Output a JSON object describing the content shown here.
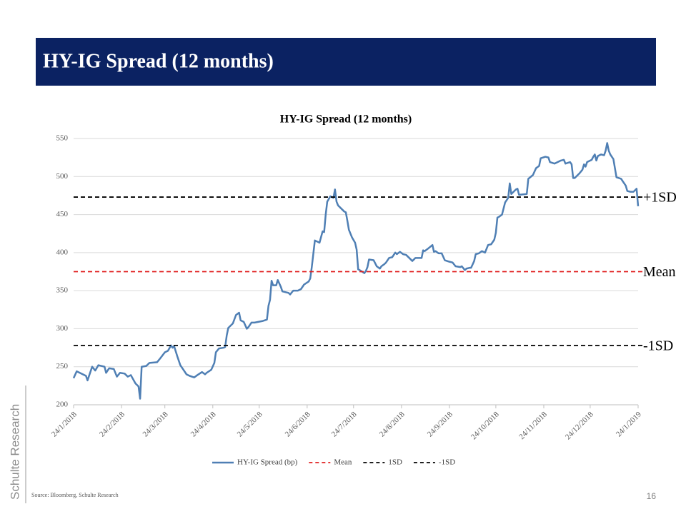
{
  "header": {
    "title": "HY-IG Spread (12 months)"
  },
  "watermark": "Schulte Research",
  "footer": {
    "source": "Source: Bloomberg, Schulte Research",
    "page": 16
  },
  "chart_data": {
    "type": "line",
    "title": "HY-IG Spread (12 months)",
    "xlim": [
      "2018-01-24",
      "2019-01-24"
    ],
    "xticks": [
      {
        "value": "2018-01-24",
        "label": "24/1/2018"
      },
      {
        "value": "2018-02-24",
        "label": "24/2/2018"
      },
      {
        "value": "2018-03-24",
        "label": "24/3/2018"
      },
      {
        "value": "2018-04-24",
        "label": "24/4/2018"
      },
      {
        "value": "2018-05-24",
        "label": "24/5/2018"
      },
      {
        "value": "2018-06-24",
        "label": "24/6/2018"
      },
      {
        "value": "2018-07-24",
        "label": "24/7/2018"
      },
      {
        "value": "2018-08-24",
        "label": "24/8/2018"
      },
      {
        "value": "2018-09-24",
        "label": "24/9/2018"
      },
      {
        "value": "2018-10-24",
        "label": "24/10/2018"
      },
      {
        "value": "2018-11-24",
        "label": "24/11/2018"
      },
      {
        "value": "2018-12-24",
        "label": "24/12/2018"
      },
      {
        "value": "2019-01-24",
        "label": "24/1/2019"
      }
    ],
    "ylim": [
      200,
      550
    ],
    "yticks": [
      200,
      250,
      300,
      350,
      400,
      450,
      500,
      550
    ],
    "grid": true,
    "x": [
      "2018-01-24",
      "2018-01-26",
      "2018-01-30",
      "2018-02-01",
      "2018-02-02",
      "2018-02-05",
      "2018-02-07",
      "2018-02-09",
      "2018-02-13",
      "2018-02-14",
      "2018-02-16",
      "2018-02-19",
      "2018-02-21",
      "2018-02-23",
      "2018-02-26",
      "2018-02-28",
      "2018-03-02",
      "2018-03-05",
      "2018-03-07",
      "2018-03-08",
      "2018-03-09",
      "2018-03-12",
      "2018-03-14",
      "2018-03-19",
      "2018-03-21",
      "2018-03-24",
      "2018-03-26",
      "2018-03-28",
      "2018-03-29",
      "2018-03-30",
      "2018-04-01",
      "2018-04-03",
      "2018-04-05",
      "2018-04-07",
      "2018-04-09",
      "2018-04-12",
      "2018-04-14",
      "2018-04-17",
      "2018-04-19",
      "2018-04-20",
      "2018-04-23",
      "2018-04-25",
      "2018-04-26",
      "2018-04-28",
      "2018-05-01",
      "2018-05-02",
      "2018-05-03",
      "2018-05-04",
      "2018-05-07",
      "2018-05-09",
      "2018-05-11",
      "2018-05-12",
      "2018-05-14",
      "2018-05-16",
      "2018-05-17",
      "2018-05-19",
      "2018-05-21",
      "2018-05-26",
      "2018-05-29",
      "2018-05-30",
      "2018-05-31",
      "2018-06-01",
      "2018-06-02",
      "2018-06-04",
      "2018-06-05",
      "2018-06-07",
      "2018-06-08",
      "2018-06-12",
      "2018-06-13",
      "2018-06-15",
      "2018-06-18",
      "2018-06-20",
      "2018-06-22",
      "2018-06-25",
      "2018-06-26",
      "2018-06-27",
      "2018-06-29",
      "2018-07-01",
      "2018-07-02",
      "2018-07-04",
      "2018-07-05",
      "2018-07-06",
      "2018-07-07",
      "2018-07-09",
      "2018-07-11",
      "2018-07-12",
      "2018-07-13",
      "2018-07-14",
      "2018-07-16",
      "2018-07-18",
      "2018-07-19",
      "2018-07-20",
      "2018-07-21",
      "2018-07-23",
      "2018-07-25",
      "2018-07-26",
      "2018-07-27",
      "2018-07-28",
      "2018-07-31",
      "2018-08-01",
      "2018-08-02",
      "2018-08-03",
      "2018-08-06",
      "2018-08-08",
      "2018-08-10",
      "2018-08-11",
      "2018-08-13",
      "2018-08-14",
      "2018-08-16",
      "2018-08-18",
      "2018-08-20",
      "2018-08-21",
      "2018-08-23",
      "2018-08-25",
      "2018-08-27",
      "2018-08-30",
      "2018-08-31",
      "2018-09-02",
      "2018-09-06",
      "2018-09-07",
      "2018-09-08",
      "2018-09-10",
      "2018-09-13",
      "2018-09-14",
      "2018-09-15",
      "2018-09-17",
      "2018-09-19",
      "2018-09-21",
      "2018-09-24",
      "2018-09-26",
      "2018-09-28",
      "2018-10-01",
      "2018-10-02",
      "2018-10-04",
      "2018-10-05",
      "2018-10-07",
      "2018-10-08",
      "2018-10-10",
      "2018-10-11",
      "2018-10-13",
      "2018-10-15",
      "2018-10-17",
      "2018-10-19",
      "2018-10-21",
      "2018-10-23",
      "2018-10-24",
      "2018-10-25",
      "2018-10-26",
      "2018-10-28",
      "2018-10-30",
      "2018-11-01",
      "2018-11-02",
      "2018-11-03",
      "2018-11-04",
      "2018-11-06",
      "2018-11-07",
      "2018-11-08",
      "2018-11-13",
      "2018-11-14",
      "2018-11-17",
      "2018-11-19",
      "2018-11-21",
      "2018-11-22",
      "2018-11-25",
      "2018-11-27",
      "2018-11-28",
      "2018-12-01",
      "2018-12-05",
      "2018-12-07",
      "2018-12-08",
      "2018-12-11",
      "2018-12-12",
      "2018-12-13",
      "2018-12-14",
      "2018-12-17",
      "2018-12-19",
      "2018-12-20",
      "2018-12-21",
      "2018-12-22",
      "2018-12-25",
      "2018-12-26",
      "2018-12-27",
      "2018-12-28",
      "2018-12-29",
      "2018-12-31",
      "2019-01-02",
      "2019-01-03",
      "2019-01-04",
      "2019-01-05",
      "2019-01-06",
      "2019-01-08",
      "2019-01-09",
      "2019-01-10",
      "2019-01-13",
      "2019-01-14",
      "2019-01-16",
      "2019-01-17",
      "2019-01-19",
      "2019-01-21",
      "2019-01-23",
      "2019-01-24"
    ],
    "series": [
      {
        "name": "HY-IG Spread (bp)",
        "color": "#4f7fb4",
        "values": [
          235,
          244,
          240,
          238,
          232,
          250,
          245,
          252,
          250,
          242,
          248,
          247,
          237,
          242,
          241,
          237,
          239,
          228,
          224,
          208,
          250,
          251,
          255,
          256,
          261,
          269,
          271,
          278,
          275,
          277,
          264,
          252,
          246,
          240,
          238,
          236,
          239,
          243,
          240,
          242,
          246,
          255,
          269,
          274,
          275,
          276,
          291,
          301,
          307,
          318,
          321,
          311,
          309,
          300,
          302,
          308,
          308,
          310,
          312,
          330,
          338,
          363,
          357,
          357,
          364,
          355,
          349,
          347,
          345,
          350,
          350,
          352,
          358,
          362,
          366,
          381,
          416,
          414,
          413,
          428,
          427,
          450,
          467,
          474,
          472,
          483,
          467,
          462,
          458,
          454,
          453,
          442,
          430,
          420,
          413,
          404,
          378,
          377,
          373,
          376,
          381,
          391,
          390,
          382,
          379,
          382,
          385,
          387,
          393,
          394,
          400,
          398,
          401,
          398,
          397,
          391,
          389,
          393,
          393,
          403,
          402,
          405,
          410,
          401,
          402,
          399,
          399,
          390,
          388,
          387,
          382,
          381,
          382,
          377,
          379,
          380,
          380,
          389,
          398,
          399,
          402,
          400,
          410,
          411,
          417,
          426,
          446,
          447,
          450,
          466,
          472,
          491,
          477,
          479,
          483,
          484,
          476,
          477,
          497,
          502,
          511,
          514,
          524,
          526,
          525,
          519,
          517,
          521,
          522,
          517,
          519,
          516,
          498,
          498,
          504,
          509,
          516,
          513,
          519,
          522,
          526,
          529,
          521,
          527,
          529,
          528,
          534,
          544,
          534,
          529,
          523,
          511,
          499,
          497,
          494,
          488,
          481,
          480,
          480,
          484,
          461
        ]
      }
    ],
    "reference_lines": [
      {
        "name": "Mean",
        "label": "Mean",
        "value": 375,
        "color": "#e02020"
      },
      {
        "name": "1SD",
        "label": "+1SD",
        "value": 473,
        "color": "#000000"
      },
      {
        "name": "-1SD",
        "label": "-1SD",
        "value": 278,
        "color": "#000000"
      }
    ]
  }
}
